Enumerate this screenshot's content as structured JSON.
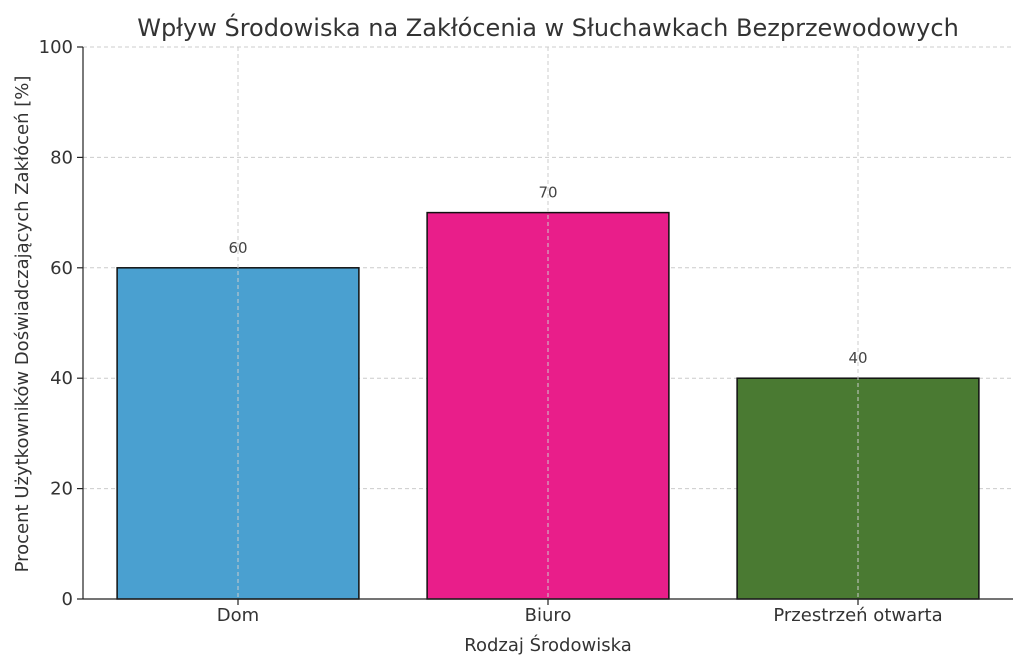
{
  "chart_data": {
    "type": "bar",
    "title": "Wpływ Środowiska na Zakłócenia w Słuchawkach Bezprzewodowych",
    "xlabel": "Rodzaj Środowiska",
    "ylabel": "Procent Użytkowników Doświadczających Zakłóceń [%]",
    "categories": [
      "Dom",
      "Biuro",
      "Przestrzeń otwarta"
    ],
    "values": [
      60,
      70,
      40
    ],
    "data_labels": [
      "60",
      "70",
      "40"
    ],
    "colors": [
      "#4aa0d0",
      "#e91e8a",
      "#4a7a32"
    ],
    "ylim": [
      0,
      100
    ],
    "yticks": [
      0,
      20,
      40,
      60,
      80,
      100
    ],
    "ytick_labels": [
      "0",
      "20",
      "40",
      "60",
      "80",
      "100"
    ],
    "grid": true
  }
}
